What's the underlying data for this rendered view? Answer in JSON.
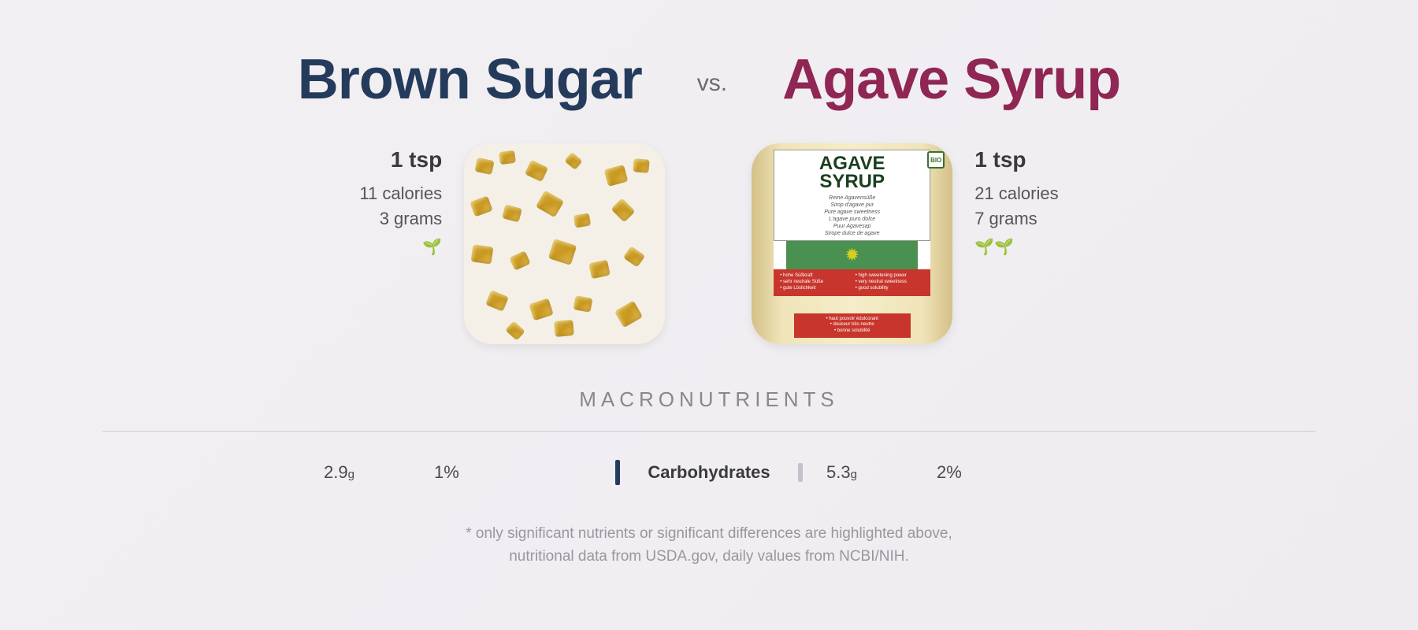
{
  "left": {
    "title": "Brown Sugar",
    "title_color": "#243b5c",
    "serving": "1 tsp",
    "calories": "11 calories",
    "grams": "3 grams",
    "sprout_count": 1,
    "carb_value": "2.9",
    "carb_unit": "g",
    "carb_pct": "1%"
  },
  "right": {
    "title": "Agave Syrup",
    "title_color": "#8f2653",
    "serving": "1 tsp",
    "calories": "21 calories",
    "grams": "7 grams",
    "sprout_count": 2,
    "carb_value": "5.3",
    "carb_unit": "g",
    "carb_pct": "2%"
  },
  "vs_label": "vs.",
  "section_title": "MACRONUTRIENTS",
  "macro_label": "Carbohydrates",
  "left_bar_color": "#243b5c",
  "right_bar_color": "#c8c0cc",
  "footnote_line1": "* only significant nutrients or significant differences are highlighted above,",
  "footnote_line2": "nutritional data from USDA.gov, daily values from NCBI/NIH.",
  "agave_label": {
    "line1": "AGAVE",
    "line2": "SYRUP",
    "subs": [
      "Reine Agavensüße",
      "Sirop d'agave pur",
      "Pure agave sweetness",
      "L'agave puro dolce",
      "Puur Agavesap",
      "Sirope dulce de agave"
    ],
    "bio": "BIO",
    "red_left": [
      "• hohe Süßkraft",
      "• sehr neutrale Süße",
      "• gute Löslichkeit"
    ],
    "red_right": [
      "• high sweetening power",
      "• very neutral sweetness",
      "• good solubility"
    ],
    "red2": [
      "• haut pouvoir édulcorant",
      "• douceur très neutre",
      "• bonne solubilité"
    ]
  }
}
